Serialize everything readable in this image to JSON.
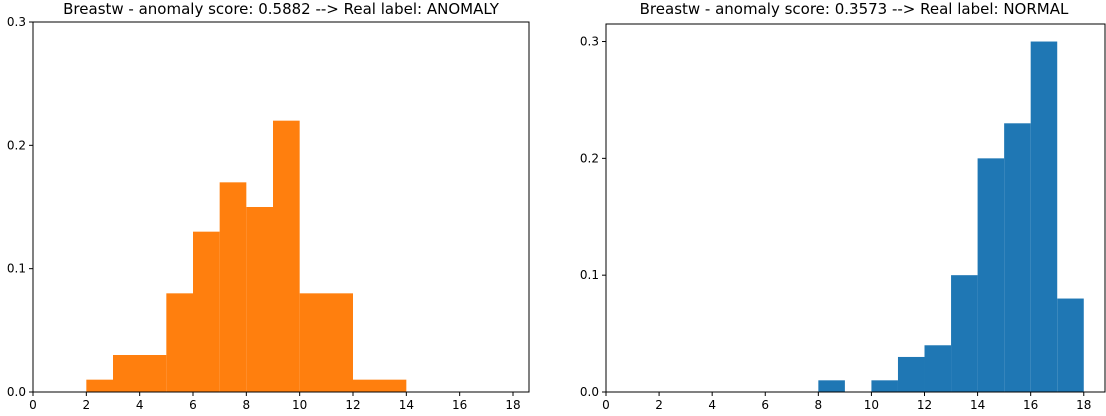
{
  "chart_data": [
    {
      "type": "bar",
      "title": "Breastw - anomaly score: 0.5882 --> Real label: ANOMALY",
      "xlabel": "",
      "ylabel": "",
      "color": "#ff7f0e",
      "xlim": [
        0,
        18.6
      ],
      "ylim": [
        0,
        0.3
      ],
      "xticks": [
        "0",
        "2",
        "4",
        "6",
        "8",
        "10",
        "12",
        "14",
        "16",
        "18"
      ],
      "yticks": [
        "0.0",
        "0.1",
        "0.2",
        "0.3"
      ],
      "bins": [
        {
          "x0": 2,
          "x1": 3,
          "value": 0.01
        },
        {
          "x0": 3,
          "x1": 5,
          "value": 0.03
        },
        {
          "x0": 5,
          "x1": 6,
          "value": 0.08
        },
        {
          "x0": 6,
          "x1": 7,
          "value": 0.13
        },
        {
          "x0": 7,
          "x1": 8,
          "value": 0.17
        },
        {
          "x0": 8,
          "x1": 9,
          "value": 0.15
        },
        {
          "x0": 9,
          "x1": 10,
          "value": 0.22
        },
        {
          "x0": 10,
          "x1": 12,
          "value": 0.08
        },
        {
          "x0": 12,
          "x1": 14,
          "value": 0.01
        }
      ],
      "grid": false
    },
    {
      "type": "bar",
      "title": "Breastw - anomaly score: 0.3573 --> Real label: NORMAL",
      "xlabel": "",
      "ylabel": "",
      "color": "#1f77b4",
      "xlim": [
        0,
        18.8
      ],
      "ylim": [
        0,
        0.315
      ],
      "xticks": [
        "0",
        "2",
        "4",
        "6",
        "8",
        "10",
        "12",
        "14",
        "16",
        "18"
      ],
      "yticks": [
        "0.0",
        "0.1",
        "0.2",
        "0.3"
      ],
      "bins": [
        {
          "x0": 8,
          "x1": 9,
          "value": 0.01
        },
        {
          "x0": 10,
          "x1": 11,
          "value": 0.01
        },
        {
          "x0": 11,
          "x1": 12,
          "value": 0.03
        },
        {
          "x0": 12,
          "x1": 13,
          "value": 0.04
        },
        {
          "x0": 13,
          "x1": 14,
          "value": 0.1
        },
        {
          "x0": 14,
          "x1": 15,
          "value": 0.2
        },
        {
          "x0": 15,
          "x1": 16,
          "value": 0.23
        },
        {
          "x0": 16,
          "x1": 17,
          "value": 0.3
        },
        {
          "x0": 17,
          "x1": 18,
          "value": 0.08
        }
      ],
      "grid": false
    }
  ]
}
